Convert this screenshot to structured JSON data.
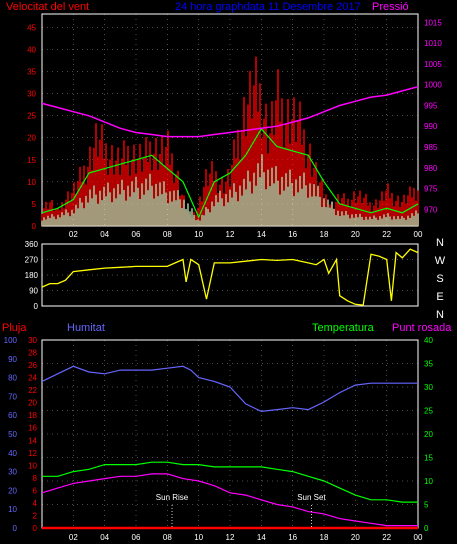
{
  "colors": {
    "background": "#000000",
    "axis": "#ffffff",
    "grid": "#ffffff",
    "wind": "#ff0000",
    "wind_avg": "#00ff00",
    "wind_base": "#ccffcc",
    "pressure": "#ff00ff",
    "direction": "#ffff00",
    "rain": "#ff0000",
    "humidity": "#6666ff",
    "temperature": "#00ff00",
    "dewpoint": "#ff00ff",
    "title": "#0000ff",
    "sun_label": "#ffffff"
  },
  "chart_data": [
    {
      "type": "line",
      "name_key": "wind_pressure",
      "title": "24 hora graphdata 11 Desembre 2017",
      "labels": {
        "left": "Velocitat del vent",
        "right": "Pressió"
      },
      "y_left": {
        "min": 0,
        "max": 48,
        "ticks": [
          0,
          5,
          10,
          15,
          20,
          25,
          30,
          35,
          40,
          45
        ]
      },
      "y_right": {
        "min": 966,
        "max": 1017,
        "ticks": [
          970,
          975,
          980,
          985,
          990,
          995,
          1000,
          1005,
          1010,
          1015
        ]
      },
      "x_ticks": [
        "02",
        "04",
        "06",
        "08",
        "10",
        "12",
        "14",
        "16",
        "18",
        "20",
        "22",
        "00"
      ],
      "grid": true,
      "series": [
        {
          "key": "gust",
          "hours": [
            0,
            0.5,
            1,
            1.5,
            2,
            2.5,
            3,
            3.5,
            4,
            4.5,
            5,
            5.5,
            6,
            6.5,
            7,
            7.5,
            8,
            8.5,
            9,
            9.5,
            10,
            10.5,
            11,
            11.5,
            12,
            12.5,
            13,
            13.5,
            14,
            14.5,
            15,
            15.5,
            16,
            16.5,
            17,
            17.5,
            18,
            18.5,
            19,
            19.5,
            20,
            20.5,
            21,
            21.5,
            22,
            22.5,
            23,
            23.5,
            24
          ],
          "values": [
            5,
            7,
            4,
            8,
            10,
            14,
            19,
            25,
            22,
            20,
            18,
            21,
            20,
            19,
            23,
            21,
            22,
            17,
            8,
            2,
            6,
            14,
            15,
            12,
            14,
            25,
            34,
            39,
            37,
            26,
            36,
            32,
            31,
            28,
            22,
            15,
            9,
            6,
            8,
            7,
            9,
            8,
            6,
            7,
            10,
            8,
            7,
            9,
            11
          ]
        },
        {
          "key": "average",
          "hours": [
            0,
            1,
            2,
            3,
            4,
            5,
            6,
            7,
            8,
            9,
            10,
            11,
            12,
            13,
            14,
            15,
            16,
            17,
            18,
            19,
            20,
            21,
            22,
            23,
            24
          ],
          "values": [
            3,
            4,
            6,
            12,
            13,
            14,
            15,
            16,
            13,
            10,
            2,
            10,
            12,
            16,
            22,
            18,
            17,
            16,
            10,
            5,
            4,
            3,
            4,
            3,
            5
          ]
        },
        {
          "key": "pressure",
          "hours": [
            0,
            1,
            2,
            3,
            4,
            5,
            6,
            7,
            8,
            9,
            10,
            11,
            12,
            13,
            14,
            15,
            16,
            17,
            18,
            19,
            20,
            21,
            22,
            23,
            24
          ],
          "values": [
            995.5,
            994.5,
            993.5,
            992.5,
            991,
            989.5,
            988.5,
            988,
            987.5,
            987.5,
            987.5,
            988,
            988.5,
            989,
            989.5,
            990,
            991,
            992,
            993.5,
            995,
            996,
            997,
            997.5,
            998.5,
            999.5
          ]
        }
      ]
    },
    {
      "type": "line",
      "name_key": "wind_direction",
      "y": {
        "min": 0,
        "max": 360,
        "ticks": [
          0,
          90,
          180,
          270,
          360
        ]
      },
      "compass": [
        "N",
        "W",
        "S",
        "E",
        "N"
      ],
      "series": [
        {
          "key": "direction",
          "hours": [
            0,
            0.5,
            1,
            1.5,
            2,
            3,
            4,
            5,
            6,
            7,
            8,
            8.5,
            9,
            9.2,
            9.5,
            10,
            10.5,
            11,
            12,
            13,
            14,
            15,
            16,
            17,
            17.5,
            18,
            18.3,
            18.8,
            19,
            19.5,
            20,
            20.5,
            21,
            21.5,
            22,
            22.3,
            22.6,
            23,
            23.5,
            24
          ],
          "values": [
            110,
            130,
            130,
            150,
            200,
            210,
            220,
            225,
            230,
            230,
            230,
            250,
            270,
            140,
            270,
            240,
            40,
            250,
            250,
            260,
            270,
            265,
            270,
            250,
            240,
            270,
            190,
            270,
            60,
            30,
            10,
            5,
            300,
            290,
            270,
            30,
            310,
            280,
            330,
            310
          ]
        }
      ]
    },
    {
      "type": "line",
      "name_key": "humidity_temperature",
      "labels": {
        "rain": "Pluja",
        "humidity": "Humitat",
        "temperature": "Temperatura",
        "dewpoint": "Punt rosada"
      },
      "y_rain": {
        "min": 0,
        "max": 30,
        "ticks": [
          0,
          2,
          4,
          6,
          8,
          10,
          12,
          14,
          16,
          18,
          20,
          22,
          24,
          26,
          28,
          30
        ]
      },
      "y_humidity": {
        "min": 0,
        "max": 100,
        "ticks": [
          0,
          10,
          20,
          30,
          40,
          50,
          60,
          70,
          80,
          90,
          100
        ]
      },
      "y_temp": {
        "min": 0,
        "max": 40,
        "ticks": [
          0,
          5,
          10,
          15,
          20,
          25,
          30,
          35,
          40
        ]
      },
      "sun_rise": {
        "hour": 8.3,
        "label": "Sun Rise"
      },
      "sun_set": {
        "hour": 17.2,
        "label": "Sun Set"
      },
      "series": [
        {
          "key": "humidity",
          "hours": [
            0,
            1,
            2,
            3,
            4,
            5,
            6,
            7,
            8,
            9,
            9.5,
            10,
            11,
            12,
            13,
            14,
            15,
            16,
            17,
            18,
            19,
            20,
            21,
            22,
            23,
            24
          ],
          "values": [
            78,
            82,
            86,
            83,
            82,
            84,
            84,
            84,
            85,
            86,
            84,
            80,
            78,
            75,
            66,
            62,
            63,
            64,
            63,
            67,
            72,
            76,
            77,
            77,
            77,
            77
          ]
        },
        {
          "key": "temperature",
          "hours": [
            0,
            1,
            2,
            3,
            4,
            5,
            6,
            7,
            8,
            9,
            10,
            11,
            12,
            13,
            14,
            15,
            16,
            17,
            18,
            19,
            20,
            21,
            22,
            23,
            24
          ],
          "values": [
            11,
            11,
            12,
            12.5,
            13.5,
            13.5,
            13.5,
            14,
            14,
            13.5,
            13.5,
            13,
            13,
            13,
            13,
            12.5,
            12,
            11,
            10,
            8.5,
            7,
            6,
            6,
            5.5,
            5.5
          ]
        },
        {
          "key": "dewpoint",
          "hours": [
            0,
            1,
            2,
            3,
            4,
            5,
            6,
            7,
            8,
            9,
            10,
            11,
            12,
            13,
            14,
            15,
            16,
            17,
            18,
            19,
            20,
            21,
            22,
            23,
            24
          ],
          "values": [
            7.5,
            8.5,
            9.5,
            10,
            10.5,
            11,
            11,
            11.5,
            11.5,
            10.5,
            10,
            9,
            7.5,
            7,
            6,
            5,
            4.5,
            3.5,
            3,
            2,
            1.5,
            1,
            0.5,
            0.5,
            0.5
          ]
        },
        {
          "key": "rain",
          "hours": [
            0,
            24
          ],
          "values": [
            0,
            0
          ]
        }
      ]
    }
  ]
}
